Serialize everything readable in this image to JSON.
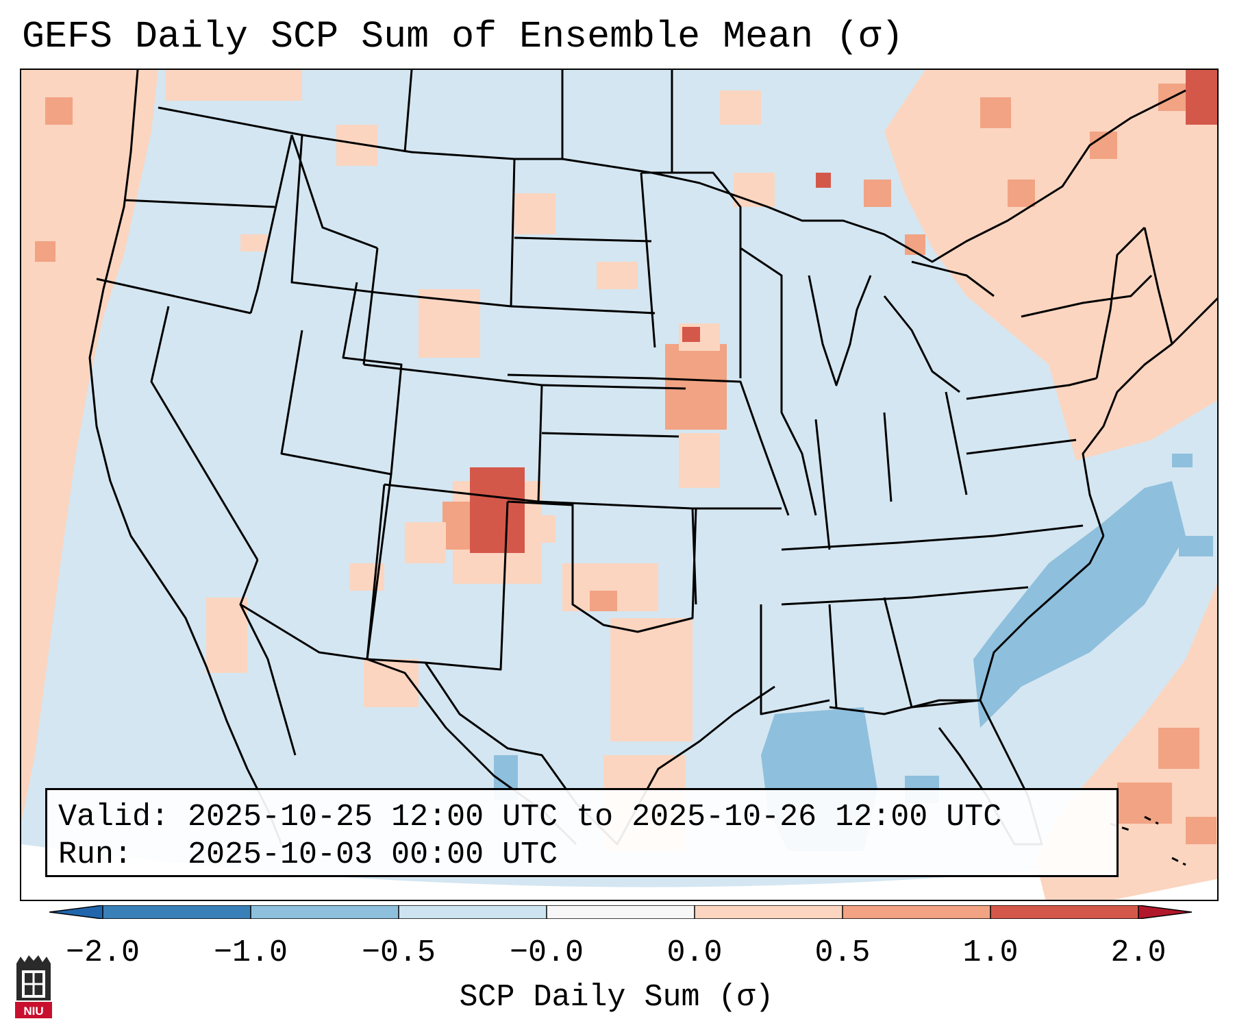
{
  "title": "GEFS Daily SCP Sum of Ensemble Mean (σ)",
  "info": {
    "valid_line": "Valid: 2025-10-25 12:00 UTC to 2025-10-26 12:00 UTC",
    "run_line": "Run:   2025-10-03 00:00 UTC"
  },
  "colorbar": {
    "label": "SCP Daily Sum (σ)",
    "ticks": [
      "−2.0",
      "−1.0",
      "−0.5",
      "−0.0",
      "0.0",
      "0.5",
      "1.0",
      "2.0"
    ],
    "colors": [
      "#3a80b8",
      "#8ebfdd",
      "#cde3f0",
      "#f7f7f7",
      "#fbd5c0",
      "#f1a383",
      "#d4584a"
    ],
    "under_color": "#2166ac",
    "over_color": "#b2182b"
  },
  "map": {
    "background_color": "#d4e6f1",
    "light_red": "#fbd5c0",
    "mid_red": "#f1a383",
    "dark_red": "#d4584a",
    "mid_blue": "#8ebfdd",
    "region": "CONUS"
  },
  "logo": {
    "text": "NIU",
    "color": "#c8102e"
  }
}
